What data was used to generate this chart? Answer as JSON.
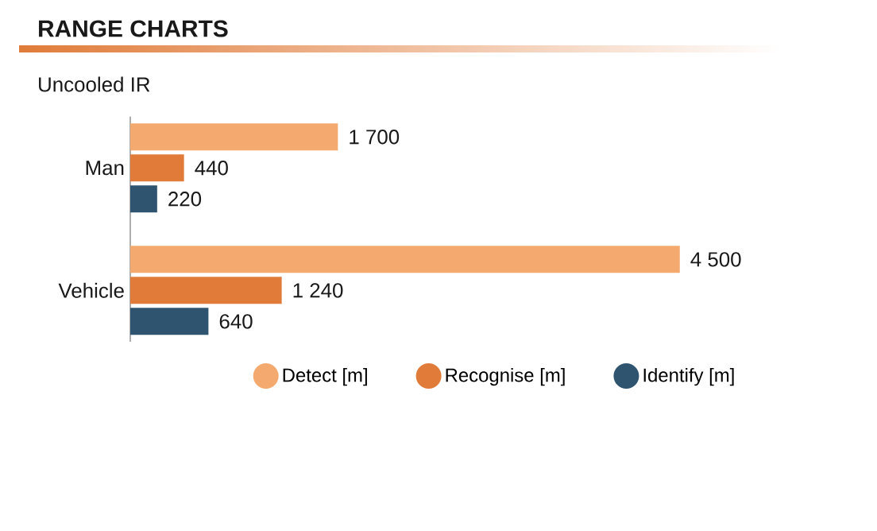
{
  "chart_data": {
    "type": "bar",
    "orientation": "horizontal",
    "title": "RANGE CHARTS",
    "subtitle": "Uncooled IR",
    "categories": [
      "Man",
      "Vehicle"
    ],
    "series": [
      {
        "name": "Detect [m]",
        "color": "#f4a96e",
        "values": [
          1700,
          4500
        ],
        "value_labels": [
          "1 700",
          "4 500"
        ]
      },
      {
        "name": "Recognise [m]",
        "color": "#e07b39",
        "values": [
          440,
          1240
        ],
        "value_labels": [
          "440",
          "1 240"
        ]
      },
      {
        "name": "Identify [m]",
        "color": "#2e5470",
        "values": [
          220,
          640
        ],
        "value_labels": [
          "220",
          "640"
        ]
      }
    ],
    "tick_labels": "y",
    "legend": "bottom",
    "grid": false
  }
}
